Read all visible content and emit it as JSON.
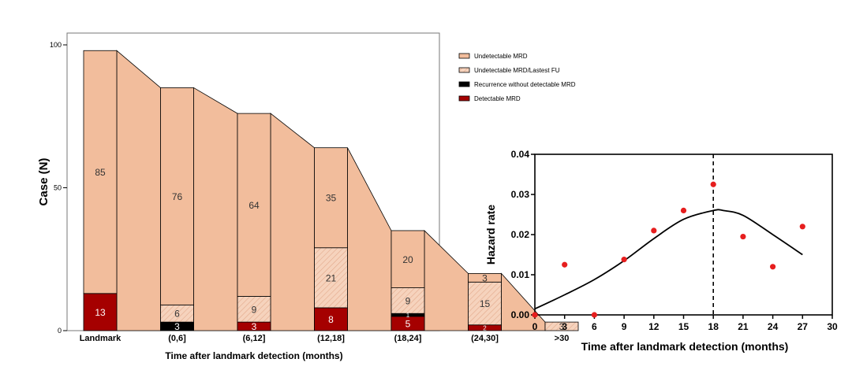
{
  "colors": {
    "undetectable": "#f2bd9c",
    "lastfu_fill": "#f6d3bd",
    "lastfu_hatch": "#e2a98a",
    "recurrence": "#000000",
    "detectable": "#a50000",
    "hazard_point": "#e61e1e",
    "line": "#000000"
  },
  "chart_data": [
    {
      "type": "bar",
      "subtype": "stacked-bar-with-flows",
      "title": "",
      "xlabel": "Time after landmark detection (months)",
      "ylabel": "Case (N)",
      "ylim": [
        0,
        100
      ],
      "yticks": [
        "0",
        "50",
        "100"
      ],
      "categories": [
        "Landmark",
        "(0,6]",
        "(6,12]",
        "(12,18]",
        "(18,24]",
        "(24,30]",
        ">30"
      ],
      "legend_position": "top-right",
      "series": [
        {
          "name": "Detectable MRD",
          "color_key": "detectable",
          "values": [
            13,
            0,
            3,
            8,
            5,
            2,
            0
          ],
          "labels": [
            "13",
            "",
            "3",
            "8",
            "5",
            "2",
            ""
          ]
        },
        {
          "name": "Recurrence without detectable MRD",
          "color_key": "recurrence",
          "values": [
            0,
            3,
            0,
            0,
            1,
            0,
            0
          ],
          "labels": [
            "",
            "3",
            "",
            "",
            "1",
            "",
            ""
          ]
        },
        {
          "name": "Undetectable MRD/Lastest FU",
          "color_key": "lastfu",
          "values": [
            0,
            6,
            9,
            21,
            9,
            15,
            3
          ],
          "labels": [
            "",
            "6",
            "9",
            "21",
            "9",
            "15",
            "3"
          ]
        },
        {
          "name": "Undetectable MRD",
          "color_key": "undetectable",
          "values": [
            85,
            76,
            64,
            35,
            20,
            3,
            0
          ],
          "labels": [
            "85",
            "76",
            "64",
            "35",
            "20",
            "3",
            ""
          ]
        }
      ],
      "legend": [
        "Undetectable MRD",
        "Undetectable MRD/Lastest FU",
        "Recurrence without detectable MRD",
        "Detectable MRD"
      ]
    },
    {
      "type": "scatter",
      "subtype": "scatter-with-fitted-curve",
      "title": "",
      "xlabel": "Time after landmark detection (months)",
      "ylabel": "Hazard rate",
      "xlim": [
        0,
        30
      ],
      "ylim": [
        0,
        0.04
      ],
      "xticks": [
        "0",
        "3",
        "6",
        "9",
        "12",
        "15",
        "18",
        "21",
        "24",
        "27",
        "30"
      ],
      "yticks": [
        "0.00",
        "0.01",
        "0.02",
        "0.03",
        "0.04"
      ],
      "points": [
        {
          "x": 0,
          "y": 0.0
        },
        {
          "x": 3,
          "y": 0.0125
        },
        {
          "x": 6,
          "y": 0.0
        },
        {
          "x": 9,
          "y": 0.0138
        },
        {
          "x": 12,
          "y": 0.021
        },
        {
          "x": 15,
          "y": 0.026
        },
        {
          "x": 18,
          "y": 0.0325
        },
        {
          "x": 21,
          "y": 0.0195
        },
        {
          "x": 24,
          "y": 0.012
        },
        {
          "x": 27,
          "y": 0.022
        }
      ],
      "fitted_curve": [
        {
          "x": 0,
          "y": 0.0015
        },
        {
          "x": 3,
          "y": 0.005
        },
        {
          "x": 6,
          "y": 0.0088
        },
        {
          "x": 9,
          "y": 0.0135
        },
        {
          "x": 12,
          "y": 0.019
        },
        {
          "x": 15,
          "y": 0.0238
        },
        {
          "x": 18,
          "y": 0.026
        },
        {
          "x": 19,
          "y": 0.026
        },
        {
          "x": 21,
          "y": 0.0248
        },
        {
          "x": 24,
          "y": 0.02
        },
        {
          "x": 27,
          "y": 0.015
        }
      ],
      "reference_line_x": 18
    }
  ]
}
